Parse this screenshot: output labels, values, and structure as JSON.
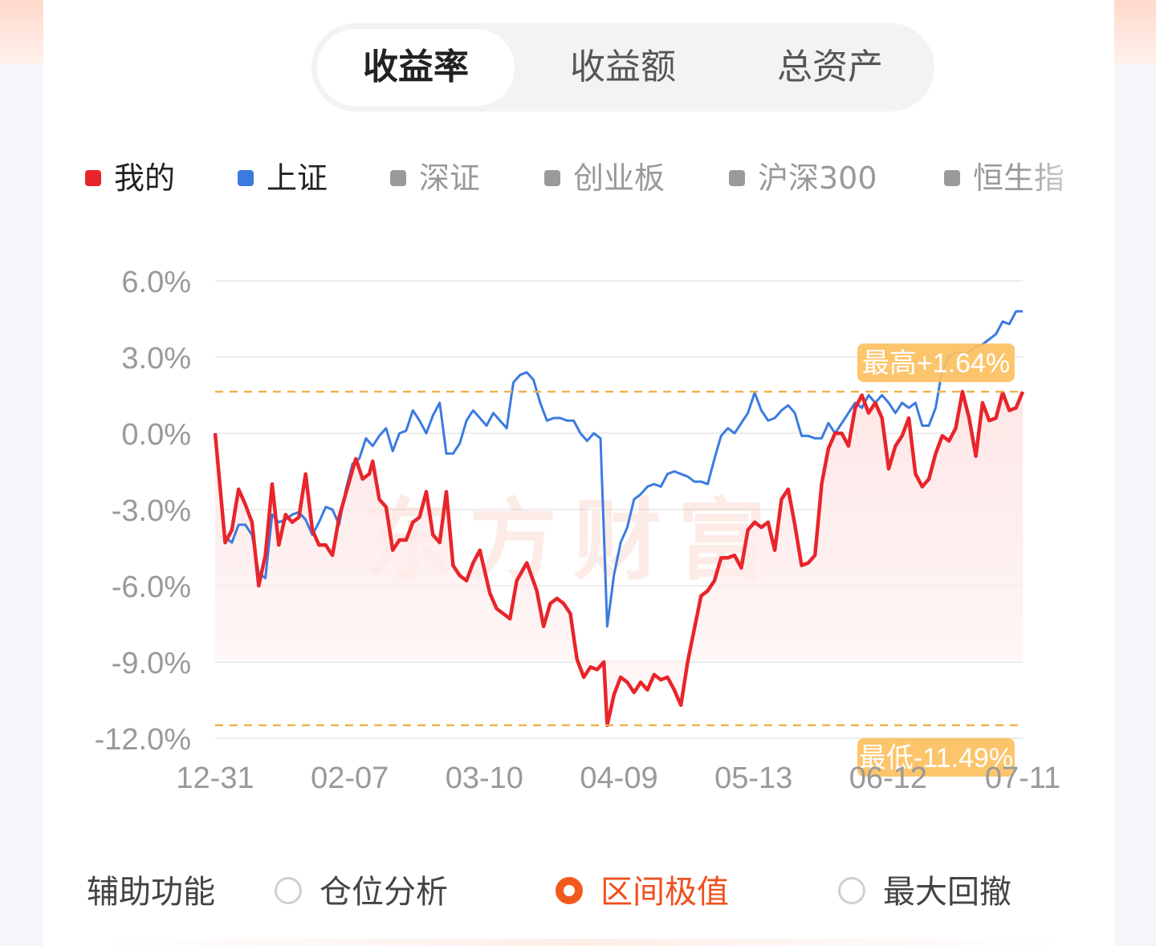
{
  "tabs": [
    {
      "label": "收益率",
      "active": true
    },
    {
      "label": "收益额",
      "active": false
    },
    {
      "label": "总资产",
      "active": false
    }
  ],
  "legend": [
    {
      "label": "我的",
      "color": "#e8252b",
      "active": true
    },
    {
      "label": "上证",
      "color": "#3b7be0",
      "active": true
    },
    {
      "label": "深证",
      "color": "#9a9a9a",
      "active": false
    },
    {
      "label": "创业板",
      "color": "#9a9a9a",
      "active": false
    },
    {
      "label": "沪深300",
      "color": "#9a9a9a",
      "active": false
    },
    {
      "label": "恒生指",
      "color": "#9a9a9a",
      "active": false
    }
  ],
  "watermark": "东方财富",
  "chart_data": {
    "type": "line",
    "y_ticks": [
      "6.0%",
      "3.0%",
      "0.0%",
      "-3.0%",
      "-6.0%",
      "-9.0%",
      "-12.0%"
    ],
    "y_tick_values": [
      6,
      3,
      0,
      -3,
      -6,
      -9,
      -12
    ],
    "ylim": [
      -12,
      6
    ],
    "x_ticks": [
      "12-31",
      "02-07",
      "03-10",
      "04-09",
      "05-13",
      "06-12",
      "07-11"
    ],
    "x_tick_index": [
      0,
      30,
      60,
      90,
      120,
      150,
      180
    ],
    "num_points": 181,
    "grid": true,
    "max_label": "最高+1.64%",
    "max_value": 1.64,
    "min_label": "最低-11.49%",
    "min_value": -11.49,
    "series": [
      {
        "name": "我的",
        "color": "#e8252b",
        "anchors": [
          [
            0,
            0
          ],
          [
            3,
            -4.3
          ],
          [
            5,
            -3.8
          ],
          [
            7,
            -2.2
          ],
          [
            9,
            -2.8
          ],
          [
            11,
            -3.5
          ],
          [
            13,
            -6.0
          ],
          [
            15,
            -4.8
          ],
          [
            17,
            -2.0
          ],
          [
            19,
            -4.4
          ],
          [
            21,
            -3.2
          ],
          [
            23,
            -3.5
          ],
          [
            25,
            -3.3
          ],
          [
            27,
            -1.6
          ],
          [
            29,
            -3.8
          ],
          [
            31,
            -4.4
          ],
          [
            33,
            -4.4
          ],
          [
            35,
            -4.8
          ],
          [
            37,
            -3.3
          ],
          [
            40,
            -1.9
          ],
          [
            42,
            -1.0
          ],
          [
            44,
            -1.8
          ],
          [
            46,
            -1.6
          ],
          [
            47,
            -1.1
          ],
          [
            49,
            -2.6
          ],
          [
            51,
            -2.9
          ],
          [
            53,
            -4.6
          ],
          [
            55,
            -4.2
          ],
          [
            57,
            -4.2
          ],
          [
            59,
            -3.5
          ],
          [
            61,
            -3.3
          ],
          [
            63,
            -2.3
          ],
          [
            65,
            -4.0
          ],
          [
            67,
            -4.3
          ],
          [
            69,
            -2.3
          ],
          [
            71,
            -5.2
          ],
          [
            73,
            -5.6
          ],
          [
            75,
            -5.8
          ],
          [
            77,
            -5.1
          ],
          [
            79,
            -4.6
          ],
          [
            82,
            -6.3
          ],
          [
            84,
            -6.9
          ],
          [
            86,
            -7.1
          ],
          [
            88,
            -7.3
          ],
          [
            90,
            -5.8
          ],
          [
            93,
            -5.1
          ],
          [
            96,
            -6.2
          ],
          [
            98,
            -7.6
          ],
          [
            100,
            -6.7
          ],
          [
            102,
            -6.5
          ],
          [
            104,
            -6.7
          ],
          [
            106,
            -7.1
          ],
          [
            108,
            -8.9
          ],
          [
            110,
            -9.6
          ],
          [
            112,
            -9.2
          ],
          [
            114,
            -9.3
          ],
          [
            116,
            -9.0
          ],
          [
            117,
            -11.49
          ],
          [
            119,
            -10.3
          ],
          [
            121,
            -9.6
          ],
          [
            123,
            -9.8
          ],
          [
            125,
            -10.2
          ],
          [
            127,
            -9.8
          ],
          [
            129,
            -10.1
          ],
          [
            131,
            -9.5
          ],
          [
            133,
            -9.7
          ],
          [
            135,
            -9.6
          ],
          [
            137,
            -10.1
          ],
          [
            139,
            -10.7
          ],
          [
            141,
            -9.0
          ],
          [
            143,
            -7.7
          ],
          [
            145,
            -6.4
          ],
          [
            147,
            -6.2
          ],
          [
            149,
            -5.8
          ],
          [
            151,
            -4.9
          ],
          [
            153,
            -4.9
          ],
          [
            155,
            -4.8
          ],
          [
            157,
            -5.3
          ],
          [
            159,
            -3.8
          ],
          [
            161,
            -3.5
          ],
          [
            163,
            -3.7
          ],
          [
            165,
            -3.5
          ],
          [
            167,
            -4.6
          ],
          [
            169,
            -2.6
          ],
          [
            171,
            -2.2
          ],
          [
            173,
            -3.6
          ],
          [
            175,
            -5.2
          ],
          [
            177,
            -5.1
          ],
          [
            179,
            -4.8
          ],
          [
            181,
            -2.0
          ],
          [
            183,
            -0.6
          ],
          [
            185,
            0.0
          ],
          [
            187,
            0.0
          ],
          [
            189,
            -0.5
          ],
          [
            191,
            1.0
          ],
          [
            193,
            1.5
          ],
          [
            195,
            0.8
          ],
          [
            197,
            1.2
          ],
          [
            199,
            0.6
          ],
          [
            201,
            -1.4
          ],
          [
            203,
            -0.5
          ],
          [
            205,
            -0.1
          ],
          [
            207,
            0.6
          ],
          [
            209,
            -1.6
          ],
          [
            211,
            -2.1
          ],
          [
            213,
            -1.8
          ],
          [
            215,
            -0.8
          ],
          [
            217,
            -0.1
          ],
          [
            219,
            -0.3
          ],
          [
            221,
            0.2
          ],
          [
            223,
            1.64
          ],
          [
            225,
            0.6
          ],
          [
            227,
            -0.9
          ],
          [
            229,
            1.2
          ],
          [
            231,
            0.5
          ],
          [
            233,
            0.6
          ],
          [
            235,
            1.6
          ],
          [
            237,
            0.9
          ],
          [
            239,
            1.0
          ],
          [
            241,
            1.64
          ]
        ]
      },
      {
        "name": "上证",
        "color": "#3b7be0",
        "anchors": [
          [
            0,
            0
          ],
          [
            3,
            -4.1
          ],
          [
            5,
            -4.3
          ],
          [
            7,
            -3.6
          ],
          [
            9,
            -3.6
          ],
          [
            11,
            -4.0
          ],
          [
            13,
            -5.5
          ],
          [
            15,
            -5.7
          ],
          [
            17,
            -3.2
          ],
          [
            19,
            -3.5
          ],
          [
            21,
            -3.4
          ],
          [
            23,
            -3.2
          ],
          [
            25,
            -3.1
          ],
          [
            27,
            -3.4
          ],
          [
            29,
            -4.0
          ],
          [
            31,
            -3.5
          ],
          [
            33,
            -2.9
          ],
          [
            35,
            -3.0
          ],
          [
            37,
            -3.6
          ],
          [
            39,
            -2.2
          ],
          [
            41,
            -1.2
          ],
          [
            43,
            -1.0
          ],
          [
            45,
            -0.2
          ],
          [
            47,
            -0.5
          ],
          [
            49,
            -0.1
          ],
          [
            51,
            0.2
          ],
          [
            53,
            -0.7
          ],
          [
            55,
            0.0
          ],
          [
            57,
            0.1
          ],
          [
            59,
            0.9
          ],
          [
            61,
            0.5
          ],
          [
            63,
            0.0
          ],
          [
            65,
            0.7
          ],
          [
            67,
            1.2
          ],
          [
            69,
            -0.8
          ],
          [
            71,
            -0.8
          ],
          [
            73,
            -0.4
          ],
          [
            75,
            0.5
          ],
          [
            77,
            0.9
          ],
          [
            79,
            0.6
          ],
          [
            81,
            0.3
          ],
          [
            83,
            0.8
          ],
          [
            85,
            0.5
          ],
          [
            87,
            0.2
          ],
          [
            89,
            2.0
          ],
          [
            91,
            2.3
          ],
          [
            93,
            2.4
          ],
          [
            95,
            2.1
          ],
          [
            97,
            1.2
          ],
          [
            99,
            0.5
          ],
          [
            101,
            0.6
          ],
          [
            103,
            0.6
          ],
          [
            105,
            0.5
          ],
          [
            107,
            0.5
          ],
          [
            109,
            0.0
          ],
          [
            111,
            -0.3
          ],
          [
            113,
            0.0
          ],
          [
            115,
            -0.2
          ],
          [
            117,
            -7.6
          ],
          [
            119,
            -5.6
          ],
          [
            121,
            -4.3
          ],
          [
            123,
            -3.7
          ],
          [
            125,
            -2.6
          ],
          [
            127,
            -2.4
          ],
          [
            129,
            -2.1
          ],
          [
            131,
            -2.0
          ],
          [
            133,
            -2.1
          ],
          [
            135,
            -1.6
          ],
          [
            137,
            -1.5
          ],
          [
            139,
            -1.6
          ],
          [
            141,
            -1.7
          ],
          [
            143,
            -1.9
          ],
          [
            145,
            -1.9
          ],
          [
            147,
            -2.0
          ],
          [
            149,
            -1.0
          ],
          [
            151,
            -0.1
          ],
          [
            153,
            0.2
          ],
          [
            155,
            0.0
          ],
          [
            157,
            0.4
          ],
          [
            159,
            0.8
          ],
          [
            161,
            1.6
          ],
          [
            163,
            0.9
          ],
          [
            165,
            0.5
          ],
          [
            167,
            0.6
          ],
          [
            169,
            0.9
          ],
          [
            171,
            1.1
          ],
          [
            173,
            0.8
          ],
          [
            175,
            -0.1
          ],
          [
            177,
            -0.1
          ],
          [
            179,
            -0.2
          ],
          [
            181,
            -0.2
          ],
          [
            183,
            0.4
          ],
          [
            185,
            0.0
          ],
          [
            187,
            0.4
          ],
          [
            189,
            0.8
          ],
          [
            191,
            1.2
          ],
          [
            193,
            1.0
          ],
          [
            195,
            1.5
          ],
          [
            197,
            1.2
          ],
          [
            199,
            1.5
          ],
          [
            201,
            1.2
          ],
          [
            203,
            0.8
          ],
          [
            205,
            1.2
          ],
          [
            207,
            1.0
          ],
          [
            209,
            1.2
          ],
          [
            211,
            0.3
          ],
          [
            213,
            0.3
          ],
          [
            215,
            1.0
          ],
          [
            217,
            2.5
          ],
          [
            219,
            3.0
          ],
          [
            221,
            3.2
          ],
          [
            223,
            3.1
          ],
          [
            225,
            3.2
          ],
          [
            227,
            3.4
          ],
          [
            229,
            3.5
          ],
          [
            231,
            3.7
          ],
          [
            233,
            3.9
          ],
          [
            235,
            4.4
          ],
          [
            237,
            4.3
          ],
          [
            239,
            4.8
          ],
          [
            241,
            4.8
          ]
        ]
      }
    ]
  },
  "aux": {
    "label": "辅助功能",
    "options": [
      {
        "label": "仓位分析",
        "selected": false
      },
      {
        "label": "区间极值",
        "selected": true
      },
      {
        "label": "最大回撤",
        "selected": false
      }
    ]
  }
}
